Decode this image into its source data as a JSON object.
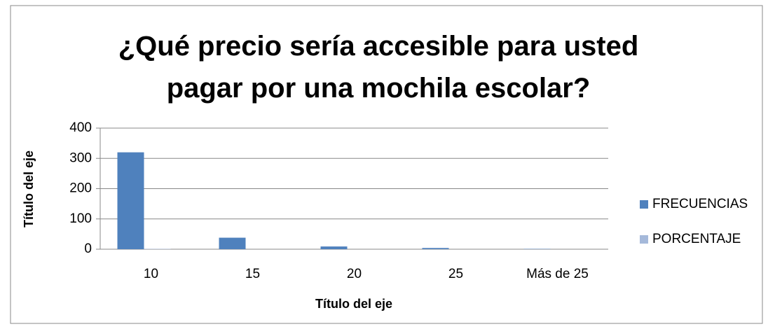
{
  "chart_data": {
    "type": "bar",
    "title": "¿Qué precio sería accesible para usted pagar por una mochila escolar?",
    "x_label": "Título del eje",
    "y_label": "Título del eje",
    "categories": [
      "10",
      "15",
      "20",
      "25",
      "Más de 25"
    ],
    "series": [
      {
        "name": "FRECUENCIAS",
        "color": "#4f81bd",
        "values": [
          320,
          38,
          9,
          4,
          1
        ]
      },
      {
        "name": "PORCENTAJE",
        "color": "#a5b9da",
        "values": [
          1,
          0,
          0,
          0,
          0
        ]
      }
    ],
    "ylim": [
      0,
      400
    ],
    "yticks": [
      0,
      100,
      200,
      300,
      400
    ],
    "grid": true,
    "legend": "right"
  }
}
